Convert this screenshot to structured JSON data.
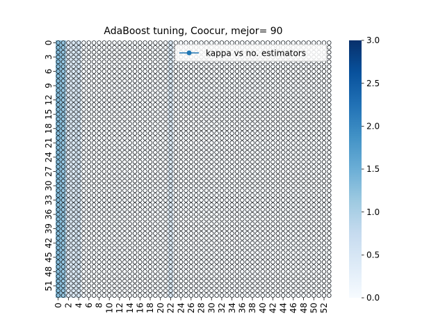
{
  "chart_data": {
    "type": "heatmap",
    "title": "AdaBoost tuning, Coocur, mejor= 90",
    "xlabel": "",
    "ylabel": "",
    "x_tick_labels": [
      "0",
      "2",
      "4",
      "6",
      "8",
      "10",
      "12",
      "14",
      "16",
      "18",
      "20",
      "22",
      "24",
      "26",
      "28",
      "30",
      "32",
      "34",
      "36",
      "38",
      "40",
      "42",
      "44",
      "46",
      "48",
      "50",
      "52"
    ],
    "y_tick_labels": [
      "0",
      "3",
      "6",
      "9",
      "12",
      "15",
      "18",
      "21",
      "24",
      "27",
      "30",
      "33",
      "36",
      "39",
      "42",
      "45",
      "48",
      "51"
    ],
    "rows": 54,
    "cols": 54,
    "cell_annotation_format": "value with up to 2 decimals (e.g. 0, 0.25, 0.5, 0.75, 1, 2, 3)",
    "colorbar": {
      "range": [
        0.0,
        3.0
      ],
      "ticks": [
        "0.0",
        "0.5",
        "1.0",
        "1.5",
        "2.0",
        "2.5",
        "3.0"
      ],
      "colormap": "Blues"
    },
    "col_profile": [
      {
        "col": 0,
        "value": 1.3
      },
      {
        "col": 1,
        "value": 1.2
      },
      {
        "col": 2,
        "value": 0.35
      },
      {
        "col": 3,
        "value": 0.4
      },
      {
        "col": 4,
        "value": 0.5
      },
      {
        "col": 22,
        "value": 0.4
      }
    ],
    "overlay_line": {
      "label": "kappa vs no. estimators",
      "color": "#1f77b4",
      "legend_position": "upper right"
    },
    "colors": {
      "cmap_low": "#f7fbff",
      "cmap_high": "#08306b",
      "line": "#1f77b4"
    }
  }
}
